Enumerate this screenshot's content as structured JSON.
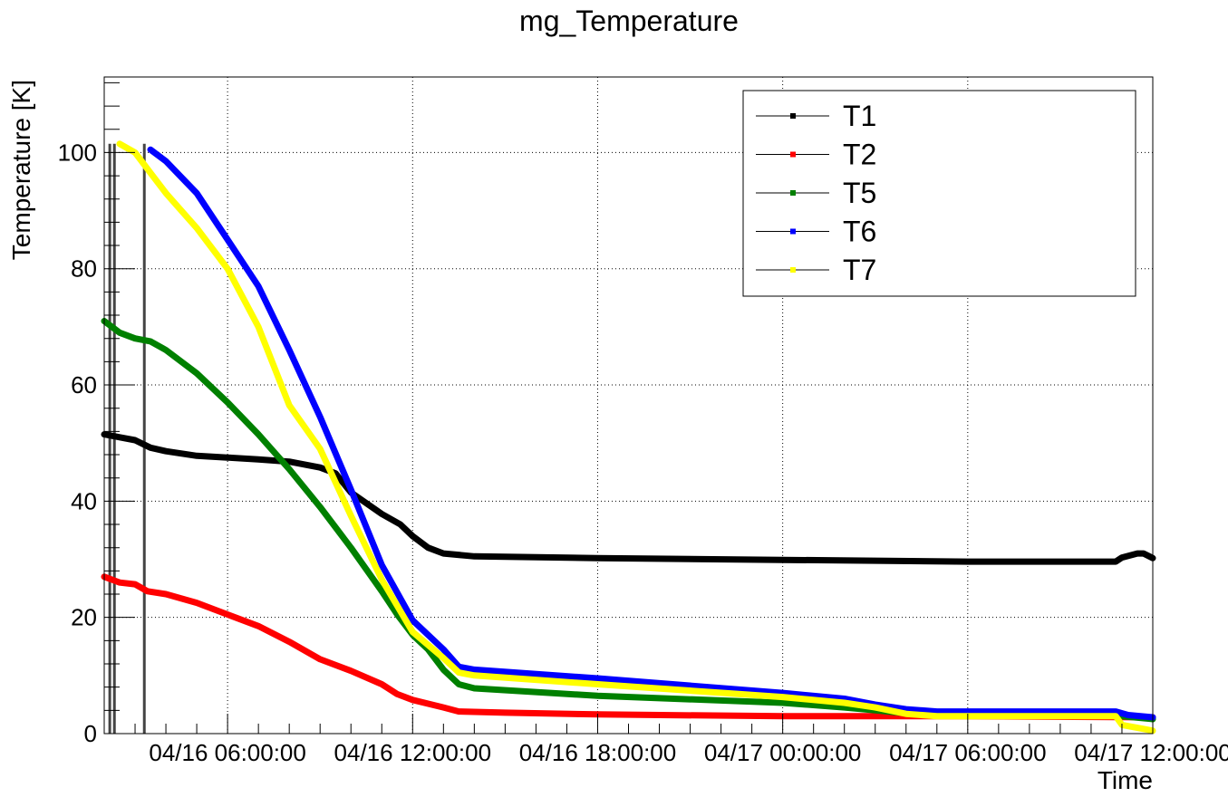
{
  "chart_data": {
    "type": "line",
    "title": "mg_Temperature",
    "xlabel": "Time",
    "ylabel": "Temperature [K]",
    "x_unit": "hours",
    "xlim": [
      2.0,
      36.0
    ],
    "ylim": [
      0,
      113
    ],
    "y_ticks": [
      0,
      20,
      40,
      60,
      80,
      100
    ],
    "x_ticks": [
      {
        "value": 6,
        "label": "04/16 06:00:00"
      },
      {
        "value": 12,
        "label": "04/16 12:00:00"
      },
      {
        "value": 18,
        "label": "04/16 18:00:00"
      },
      {
        "value": 24,
        "label": "04/17 00:00:00"
      },
      {
        "value": 30,
        "label": "04/17 06:00:00"
      },
      {
        "value": 36,
        "label": "04/17 12:00:00"
      }
    ],
    "grid": true,
    "legend_position": "top-right",
    "series": [
      {
        "name": "T1",
        "color": "#000000",
        "points": [
          [
            2.0,
            51.5
          ],
          [
            2.5,
            51.0
          ],
          [
            3.0,
            50.5
          ],
          [
            3.5,
            49.2
          ],
          [
            4.0,
            48.6
          ],
          [
            5.0,
            47.8
          ],
          [
            6.0,
            47.5
          ],
          [
            7.0,
            47.2
          ],
          [
            8.0,
            46.8
          ],
          [
            9.0,
            45.8
          ],
          [
            9.5,
            44.8
          ],
          [
            10.0,
            41.5
          ],
          [
            11.0,
            37.8
          ],
          [
            11.6,
            36.0
          ],
          [
            12.0,
            34.0
          ],
          [
            12.5,
            32.0
          ],
          [
            13.0,
            31.0
          ],
          [
            14.0,
            30.5
          ],
          [
            18.0,
            30.2
          ],
          [
            24.0,
            29.9
          ],
          [
            30.0,
            29.6
          ],
          [
            34.8,
            29.6
          ],
          [
            35.0,
            30.3
          ],
          [
            35.5,
            31.0
          ],
          [
            35.7,
            31.0
          ],
          [
            36.0,
            30.2
          ]
        ]
      },
      {
        "name": "T2",
        "color": "#ff0000",
        "points": [
          [
            2.0,
            27.0
          ],
          [
            2.5,
            26.0
          ],
          [
            3.0,
            25.7
          ],
          [
            3.4,
            24.5
          ],
          [
            4.0,
            24.0
          ],
          [
            5.0,
            22.5
          ],
          [
            6.0,
            20.5
          ],
          [
            7.0,
            18.5
          ],
          [
            8.0,
            15.8
          ],
          [
            9.0,
            12.8
          ],
          [
            10.0,
            10.8
          ],
          [
            11.0,
            8.5
          ],
          [
            11.5,
            6.8
          ],
          [
            12.0,
            5.8
          ],
          [
            13.0,
            4.5
          ],
          [
            13.5,
            3.8
          ],
          [
            15.0,
            3.6
          ],
          [
            18.0,
            3.3
          ],
          [
            24.0,
            3.0
          ],
          [
            30.0,
            3.0
          ],
          [
            36.0,
            2.8
          ]
        ]
      },
      {
        "name": "T5",
        "color": "#008000",
        "points": [
          [
            2.0,
            71.0
          ],
          [
            2.5,
            69.0
          ],
          [
            3.0,
            68.0
          ],
          [
            3.5,
            67.5
          ],
          [
            4.0,
            66.0
          ],
          [
            5.0,
            62.0
          ],
          [
            6.0,
            57.0
          ],
          [
            7.0,
            51.5
          ],
          [
            8.0,
            45.5
          ],
          [
            9.0,
            39.0
          ],
          [
            10.0,
            32.0
          ],
          [
            11.0,
            24.5
          ],
          [
            11.5,
            20.5
          ],
          [
            12.0,
            17.0
          ],
          [
            12.5,
            14.5
          ],
          [
            13.0,
            11.0
          ],
          [
            13.5,
            8.5
          ],
          [
            14.0,
            7.8
          ],
          [
            18.0,
            6.5
          ],
          [
            24.0,
            5.3
          ],
          [
            26.0,
            4.5
          ],
          [
            27.0,
            4.0
          ],
          [
            28.0,
            3.5
          ],
          [
            29.0,
            3.3
          ],
          [
            30.0,
            3.3
          ],
          [
            34.8,
            3.3
          ],
          [
            35.0,
            3.0
          ],
          [
            36.0,
            2.5
          ]
        ]
      },
      {
        "name": "T6",
        "color": "#0000ff",
        "points": [
          [
            3.5,
            100.5
          ],
          [
            4.0,
            98.5
          ],
          [
            5.0,
            93.0
          ],
          [
            6.0,
            85.0
          ],
          [
            7.0,
            77.0
          ],
          [
            8.0,
            66.0
          ],
          [
            9.0,
            54.5
          ],
          [
            10.0,
            42.0
          ],
          [
            11.0,
            29.0
          ],
          [
            12.0,
            19.5
          ],
          [
            13.0,
            14.5
          ],
          [
            13.5,
            11.5
          ],
          [
            14.0,
            11.0
          ],
          [
            18.0,
            9.5
          ],
          [
            24.0,
            7.0
          ],
          [
            26.0,
            6.0
          ],
          [
            27.0,
            5.0
          ],
          [
            28.0,
            4.2
          ],
          [
            29.0,
            3.8
          ],
          [
            30.0,
            3.8
          ],
          [
            34.8,
            3.8
          ],
          [
            35.2,
            3.2
          ],
          [
            36.0,
            2.8
          ]
        ]
      },
      {
        "name": "T7",
        "color": "#ffff00",
        "points": [
          [
            2.5,
            101.5
          ],
          [
            3.0,
            100.0
          ],
          [
            3.5,
            96.5
          ],
          [
            4.0,
            93.0
          ],
          [
            5.0,
            87.0
          ],
          [
            6.0,
            80.0
          ],
          [
            7.0,
            70.0
          ],
          [
            8.0,
            56.5
          ],
          [
            9.0,
            49.0
          ],
          [
            10.0,
            37.5
          ],
          [
            11.0,
            26.5
          ],
          [
            12.0,
            17.5
          ],
          [
            13.0,
            13.0
          ],
          [
            13.5,
            10.5
          ],
          [
            14.0,
            10.0
          ],
          [
            18.0,
            8.5
          ],
          [
            24.0,
            6.3
          ],
          [
            26.0,
            5.3
          ],
          [
            27.0,
            4.5
          ],
          [
            28.0,
            3.4
          ],
          [
            29.0,
            3.0
          ],
          [
            30.0,
            3.0
          ],
          [
            34.8,
            3.0
          ],
          [
            35.0,
            1.5
          ],
          [
            35.5,
            1.0
          ],
          [
            36.0,
            0.5
          ]
        ]
      }
    ],
    "legend": [
      {
        "name": "T1",
        "color": "#000000"
      },
      {
        "name": "T2",
        "color": "#ff0000"
      },
      {
        "name": "T5",
        "color": "#008000"
      },
      {
        "name": "T6",
        "color": "#0000ff"
      },
      {
        "name": "T7",
        "color": "#ffff00"
      }
    ],
    "spikes": [
      {
        "x": 2.18,
        "y_low": 0,
        "y_high": 101.5,
        "color": "#444444"
      },
      {
        "x": 2.33,
        "y_low": 0,
        "y_high": 101.5,
        "color": "#444444"
      },
      {
        "x": 3.3,
        "y_low": 0,
        "y_high": 101.5,
        "color": "#444444"
      }
    ]
  }
}
